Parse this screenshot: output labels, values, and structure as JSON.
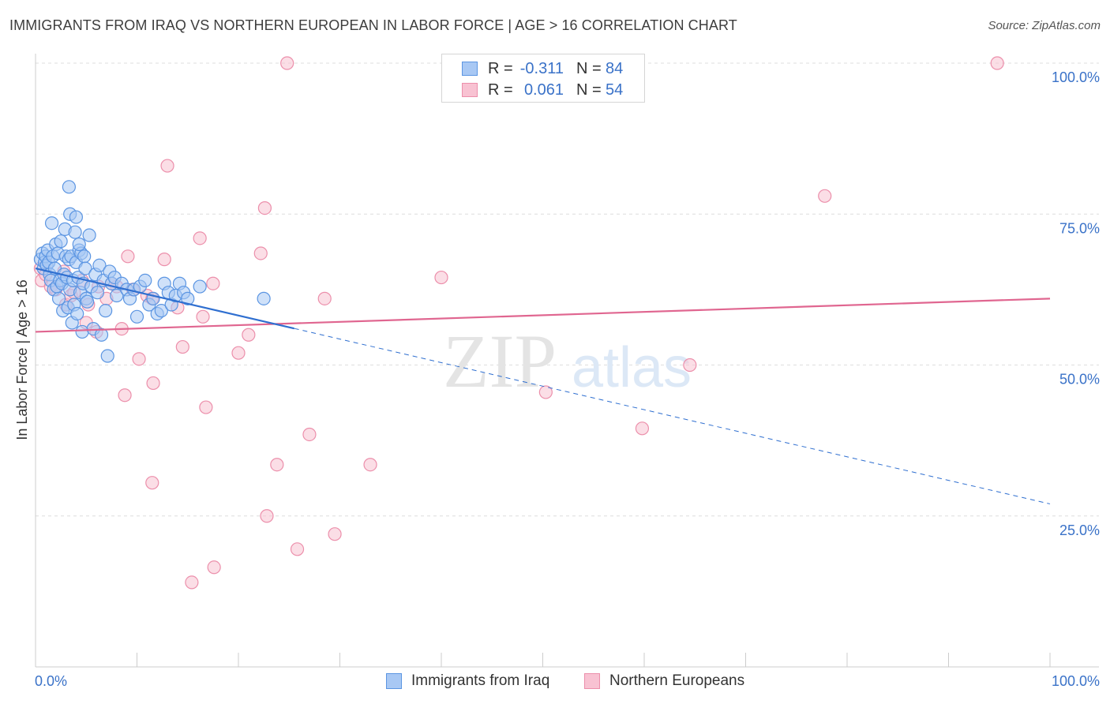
{
  "header": {
    "title": "IMMIGRANTS FROM IRAQ VS NORTHERN EUROPEAN IN LABOR FORCE | AGE > 16 CORRELATION CHART",
    "source": "Source: ZipAtlas.com"
  },
  "legend": {
    "rows": [
      {
        "r_label": "R =",
        "r_value": "-0.311",
        "n_label": "N =",
        "n_value": "84"
      },
      {
        "r_label": "R =",
        "r_value": "0.061",
        "n_label": "N =",
        "n_value": "54"
      }
    ]
  },
  "bottom_legend": {
    "series_a": "Immigrants from Iraq",
    "series_b": "Northern Europeans"
  },
  "watermark": {
    "zip": "ZIP",
    "atlas": "atlas"
  },
  "colors": {
    "blue_fill": "#a8c8f4",
    "blue_stroke": "#5b95e2",
    "blue_line": "#2f6fd0",
    "pink_fill": "#f8c2d2",
    "pink_stroke": "#ec8fab",
    "pink_line": "#e06690",
    "value_text": "#3a72c8"
  },
  "chart_data": {
    "type": "scatter",
    "title": "IMMIGRANTS FROM IRAQ VS NORTHERN EUROPEAN IN LABOR FORCE | AGE > 16 CORRELATION CHART",
    "xlabel": "",
    "ylabel": "In Labor Force | Age > 16",
    "xlim": [
      0,
      100
    ],
    "ylim": [
      0,
      102
    ],
    "x_tick_labels": [
      "0.0%",
      "100.0%"
    ],
    "y_ticks": [
      25,
      50,
      75,
      100
    ],
    "y_tick_labels": [
      "25.0%",
      "50.0%",
      "75.0%",
      "100.0%"
    ],
    "grid": true,
    "series": [
      {
        "name": "Immigrants from Iraq",
        "color": "blue",
        "R": -0.311,
        "N": 84,
        "trend": {
          "x0": 0,
          "y0": 66,
          "x_solid_end": 25.5,
          "x1": 100,
          "y1": 27
        },
        "points": [
          [
            0.5,
            67.5
          ],
          [
            0.7,
            68.5
          ],
          [
            0.8,
            66
          ],
          [
            0.9,
            67
          ],
          [
            1.0,
            68
          ],
          [
            1.1,
            66.5
          ],
          [
            1.2,
            69
          ],
          [
            1.3,
            67
          ],
          [
            1.4,
            65
          ],
          [
            1.5,
            64
          ],
          [
            1.6,
            73.5
          ],
          [
            1.7,
            68
          ],
          [
            1.8,
            62.5
          ],
          [
            1.9,
            66
          ],
          [
            2.0,
            70
          ],
          [
            2.1,
            63
          ],
          [
            2.2,
            68.5
          ],
          [
            2.3,
            61
          ],
          [
            2.4,
            64
          ],
          [
            2.5,
            70.5
          ],
          [
            2.6,
            63.5
          ],
          [
            2.7,
            59
          ],
          [
            2.8,
            65
          ],
          [
            2.9,
            72.5
          ],
          [
            3.0,
            68
          ],
          [
            3.1,
            64.5
          ],
          [
            3.2,
            59.5
          ],
          [
            3.3,
            67.5
          ],
          [
            3.4,
            62.5
          ],
          [
            3.5,
            68
          ],
          [
            3.6,
            57
          ],
          [
            3.7,
            64
          ],
          [
            3.8,
            60
          ],
          [
            3.9,
            72
          ],
          [
            4.0,
            67
          ],
          [
            4.1,
            58.5
          ],
          [
            4.2,
            64.5
          ],
          [
            4.3,
            69
          ],
          [
            4.4,
            62
          ],
          [
            4.5,
            68.5
          ],
          [
            4.6,
            55.5
          ],
          [
            4.7,
            63.5
          ],
          [
            4.8,
            68
          ],
          [
            4.9,
            66
          ],
          [
            5.0,
            61
          ],
          [
            5.1,
            60.5
          ],
          [
            5.3,
            71.5
          ],
          [
            5.5,
            63
          ],
          [
            5.7,
            56
          ],
          [
            5.9,
            65
          ],
          [
            6.1,
            62
          ],
          [
            6.3,
            66.5
          ],
          [
            6.5,
            55
          ],
          [
            6.7,
            64
          ],
          [
            6.9,
            59
          ],
          [
            7.1,
            51.5
          ],
          [
            7.3,
            65.5
          ],
          [
            7.5,
            63.5
          ],
          [
            7.8,
            64.5
          ],
          [
            8.0,
            61.5
          ],
          [
            3.3,
            79.5
          ],
          [
            3.4,
            75
          ],
          [
            4.0,
            74.5
          ],
          [
            4.3,
            70
          ],
          [
            8.5,
            63.5
          ],
          [
            9.0,
            62.5
          ],
          [
            9.3,
            61
          ],
          [
            9.7,
            62.5
          ],
          [
            10.0,
            58
          ],
          [
            10.3,
            63
          ],
          [
            10.8,
            64
          ],
          [
            11.2,
            60
          ],
          [
            11.6,
            61
          ],
          [
            12.0,
            58.5
          ],
          [
            12.4,
            59
          ],
          [
            12.7,
            63.5
          ],
          [
            13.1,
            62
          ],
          [
            13.4,
            60
          ],
          [
            13.8,
            61.5
          ],
          [
            14.2,
            63.5
          ],
          [
            14.6,
            62
          ],
          [
            15.0,
            61
          ],
          [
            16.2,
            63
          ],
          [
            22.5,
            61
          ]
        ]
      },
      {
        "name": "Northern Europeans",
        "color": "pink",
        "R": 0.061,
        "N": 54,
        "trend": {
          "x0": 0,
          "y0": 55.5,
          "x1": 100,
          "y1": 61
        },
        "points": [
          [
            24.8,
            100
          ],
          [
            94.8,
            100
          ],
          [
            13.0,
            83
          ],
          [
            77.8,
            78
          ],
          [
            22.6,
            76
          ],
          [
            16.2,
            71
          ],
          [
            9.1,
            68
          ],
          [
            12.7,
            67.5
          ],
          [
            22.2,
            68.5
          ],
          [
            40.0,
            64.5
          ],
          [
            0.5,
            66
          ],
          [
            0.6,
            64
          ],
          [
            1.0,
            65
          ],
          [
            1.5,
            63
          ],
          [
            2.0,
            62.5
          ],
          [
            3.0,
            60
          ],
          [
            3.5,
            61.5
          ],
          [
            5.0,
            57
          ],
          [
            5.2,
            60
          ],
          [
            6.0,
            55.5
          ],
          [
            7.0,
            61
          ],
          [
            8.0,
            63
          ],
          [
            8.5,
            56
          ],
          [
            11.0,
            61.5
          ],
          [
            11.5,
            61
          ],
          [
            14.0,
            59.5
          ],
          [
            14.5,
            53
          ],
          [
            16.5,
            58
          ],
          [
            17.5,
            63.5
          ],
          [
            20.0,
            52
          ],
          [
            21.0,
            55
          ],
          [
            28.5,
            61
          ],
          [
            10.2,
            51
          ],
          [
            11.6,
            47
          ],
          [
            8.8,
            45
          ],
          [
            16.8,
            43
          ],
          [
            27.0,
            38.5
          ],
          [
            50.3,
            45.5
          ],
          [
            59.8,
            39.5
          ],
          [
            64.5,
            50
          ],
          [
            11.5,
            30.5
          ],
          [
            23.8,
            33.5
          ],
          [
            33.0,
            33.5
          ],
          [
            22.8,
            25
          ],
          [
            29.5,
            22
          ],
          [
            25.8,
            19.5
          ],
          [
            17.6,
            16.5
          ],
          [
            15.4,
            14
          ],
          [
            6.2,
            63
          ],
          [
            9.6,
            62.5
          ],
          [
            4.6,
            64
          ],
          [
            3.8,
            62
          ],
          [
            2.8,
            65.5
          ],
          [
            7.5,
            63.5
          ]
        ]
      }
    ]
  }
}
